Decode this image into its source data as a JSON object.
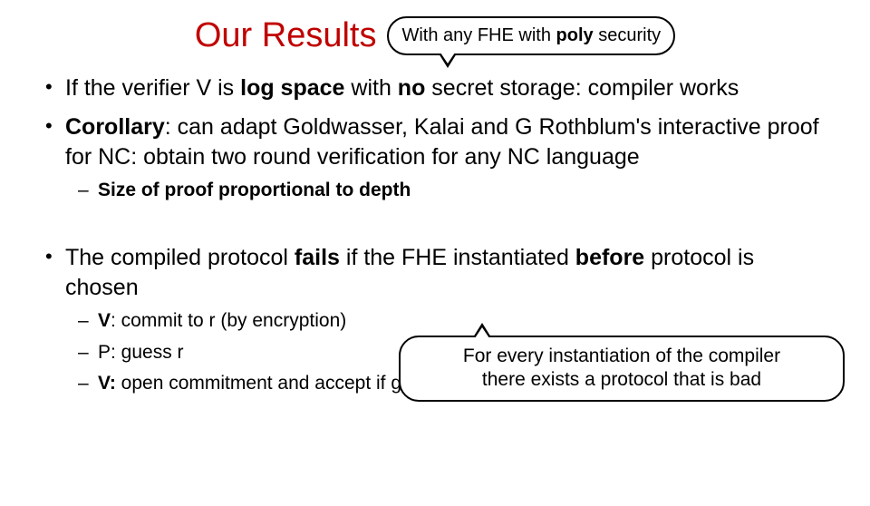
{
  "colors": {
    "title": "#c00000",
    "text": "#000000",
    "background": "#ffffff",
    "border": "#000000"
  },
  "typography": {
    "title_fontsize": 38,
    "body_fontsize": 25,
    "sub_fontsize": 21,
    "callout_fontsize": 20,
    "font_family": "Arial"
  },
  "title": "Our Results",
  "callout_top": {
    "pre": "With any FHE with ",
    "bold": "poly",
    "post": " security"
  },
  "bullets": [
    {
      "parts": [
        {
          "t": "If the verifier V is ",
          "b": false
        },
        {
          "t": "log space ",
          "b": true
        },
        {
          "t": "with ",
          "b": false
        },
        {
          "t": "no",
          "b": true
        },
        {
          "t": " secret storage: compiler works",
          "b": false
        }
      ]
    },
    {
      "parts": [
        {
          "t": "Corollary",
          "b": true
        },
        {
          "t": ": can adapt Goldwasser, Kalai and G Rothblum's interactive proof for NC: obtain two round verification for any NC language",
          "b": false
        }
      ],
      "sub": [
        {
          "parts": [
            {
              "t": "Size of proof proportional to depth",
              "b": true
            }
          ]
        }
      ]
    },
    {
      "spacer": true,
      "parts": [
        {
          "t": "The compiled protocol ",
          "b": false
        },
        {
          "t": "fails ",
          "b": true
        },
        {
          "t": "if the FHE instantiated ",
          "b": false
        },
        {
          "t": "before ",
          "b": true
        },
        {
          "t": "protocol is chosen",
          "b": false
        }
      ],
      "sub": [
        {
          "parts": [
            {
              "t": "V",
              "b": true
            },
            {
              "t": ": commit to r (by encryption)",
              "b": false
            }
          ]
        },
        {
          "parts": [
            {
              "t": "P: guess r",
              "b": false
            }
          ]
        },
        {
          "parts": [
            {
              "t": "V:",
              "b": true
            },
            {
              "t": " open commitment and accept if guess was correct",
              "b": false
            }
          ]
        }
      ]
    }
  ],
  "callout_bottom": {
    "line1": "For every instantiation of the compiler",
    "line2": "there exists a protocol that is bad"
  }
}
